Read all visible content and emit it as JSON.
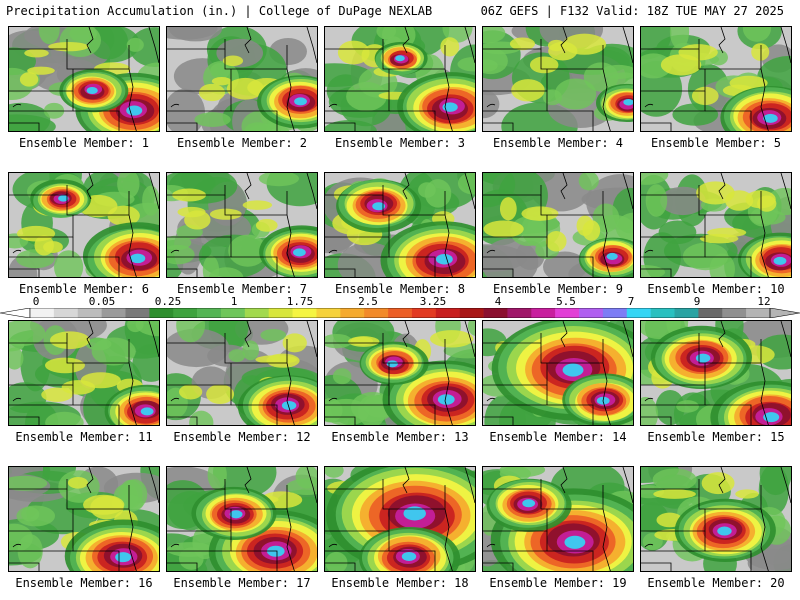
{
  "header": {
    "left_title": "Precipitation Accumulation (in.) | College of DuPage NEXLAB",
    "right_title": "06Z GEFS | F132 Valid: 18Z TUE MAY 27 2025"
  },
  "colorbar": {
    "labels": [
      "0",
      "0.05",
      "0.25",
      "1",
      "1.75",
      "2.5",
      "3.25",
      "4",
      "5.5",
      "7",
      "9",
      "12"
    ],
    "colors": [
      "#f2f2f2",
      "#d7d7d7",
      "#bcbcbc",
      "#9b9b9b",
      "#7a7a7a",
      "#2f8f2f",
      "#3fa33f",
      "#55b555",
      "#6fc65a",
      "#a2d94d",
      "#d8e63c",
      "#f5f542",
      "#f6d23a",
      "#f5aa2e",
      "#f28a2a",
      "#ec5f26",
      "#e23b22",
      "#c81f1f",
      "#a91616",
      "#8b0f2f",
      "#a0186a",
      "#c8209e",
      "#e23fd6",
      "#b060f0",
      "#7d7df5",
      "#35d5f5",
      "#2ac0c0",
      "#2aa3a3",
      "#6a6a6a",
      "#909090",
      "#b4b4b4"
    ]
  },
  "panels": [
    {
      "label": "Ensemble Member: 1",
      "heavy": [
        [
          0.82,
          0.78,
          0.14
        ],
        [
          0.55,
          0.6,
          0.08
        ]
      ],
      "green": 0.7
    },
    {
      "label": "Ensemble Member: 2",
      "heavy": [
        [
          0.88,
          0.7,
          0.1
        ]
      ],
      "green": 0.5
    },
    {
      "label": "Ensemble Member: 3",
      "heavy": [
        [
          0.83,
          0.76,
          0.13
        ],
        [
          0.5,
          0.3,
          0.06
        ]
      ],
      "green": 0.7
    },
    {
      "label": "Ensemble Member: 4",
      "heavy": [
        [
          0.95,
          0.72,
          0.07
        ]
      ],
      "green": 0.6
    },
    {
      "label": "Ensemble Member: 5",
      "heavy": [
        [
          0.85,
          0.85,
          0.12
        ]
      ],
      "green": 0.65
    },
    {
      "label": "Ensemble Member: 6",
      "heavy": [
        [
          0.85,
          0.8,
          0.13
        ],
        [
          0.35,
          0.25,
          0.07
        ]
      ],
      "green": 0.75
    },
    {
      "label": "Ensemble Member: 7",
      "heavy": [
        [
          0.88,
          0.75,
          0.1
        ]
      ],
      "green": 0.55
    },
    {
      "label": "Ensemble Member: 8",
      "heavy": [
        [
          0.78,
          0.82,
          0.15
        ],
        [
          0.35,
          0.3,
          0.1
        ]
      ],
      "green": 0.8
    },
    {
      "label": "Ensemble Member: 9",
      "heavy": [
        [
          0.85,
          0.8,
          0.08
        ]
      ],
      "green": 0.6
    },
    {
      "label": "Ensemble Member: 10",
      "heavy": [
        [
          0.92,
          0.82,
          0.1
        ]
      ],
      "green": 0.6
    },
    {
      "label": "Ensemble Member: 11",
      "heavy": [
        [
          0.9,
          0.85,
          0.1
        ]
      ],
      "green": 0.65
    },
    {
      "label": "Ensemble Member: 12",
      "heavy": [
        [
          0.8,
          0.8,
          0.12
        ]
      ],
      "green": 0.55
    },
    {
      "label": "Ensemble Member: 13",
      "heavy": [
        [
          0.8,
          0.75,
          0.15
        ],
        [
          0.45,
          0.4,
          0.08
        ]
      ],
      "green": 0.8
    },
    {
      "label": "Ensemble Member: 14",
      "heavy": [
        [
          0.6,
          0.45,
          0.2
        ],
        [
          0.8,
          0.75,
          0.1
        ]
      ],
      "green": 0.85
    },
    {
      "label": "Ensemble Member: 15",
      "heavy": [
        [
          0.85,
          0.9,
          0.14
        ],
        [
          0.4,
          0.35,
          0.12
        ]
      ],
      "green": 0.8
    },
    {
      "label": "Ensemble Member: 16",
      "heavy": [
        [
          0.75,
          0.85,
          0.14
        ]
      ],
      "green": 0.75
    },
    {
      "label": "Ensemble Member: 17",
      "heavy": [
        [
          0.72,
          0.8,
          0.16
        ],
        [
          0.45,
          0.45,
          0.1
        ]
      ],
      "green": 0.85
    },
    {
      "label": "Ensemble Member: 18",
      "heavy": [
        [
          0.6,
          0.45,
          0.22
        ],
        [
          0.55,
          0.85,
          0.12
        ]
      ],
      "green": 0.9
    },
    {
      "label": "Ensemble Member: 19",
      "heavy": [
        [
          0.6,
          0.7,
          0.2
        ],
        [
          0.3,
          0.35,
          0.1
        ]
      ],
      "green": 0.9
    },
    {
      "label": "Ensemble Member: 20",
      "heavy": [
        [
          0.55,
          0.6,
          0.12
        ]
      ],
      "green": 0.75
    }
  ]
}
